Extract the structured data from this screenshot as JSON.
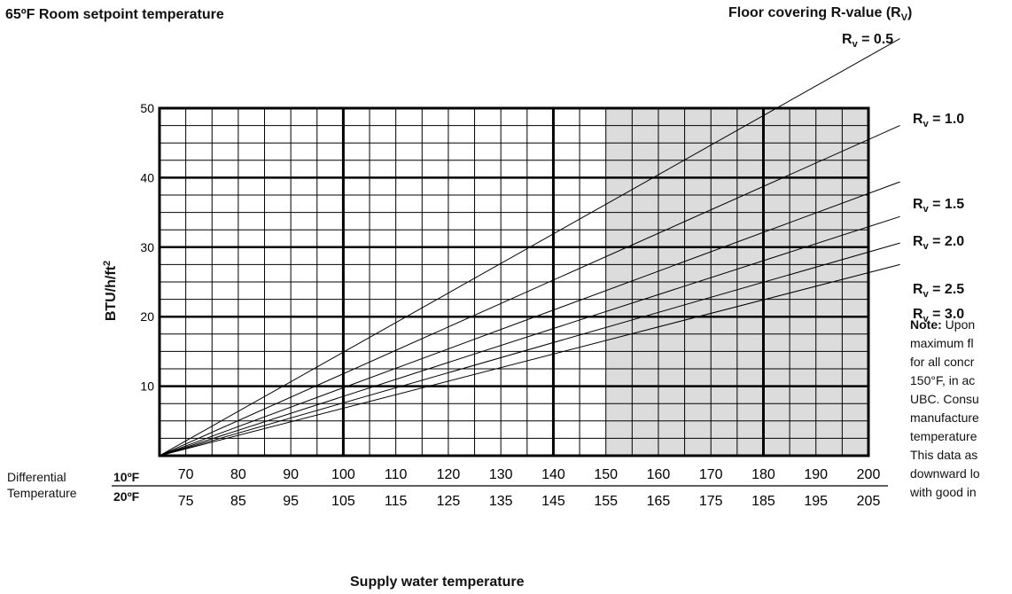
{
  "header": {
    "title": "65ºF Room setpoint temperature",
    "legend_title": "Floor covering R-value (R",
    "legend_title_sub": "V",
    "legend_title_close": ")"
  },
  "axes": {
    "ylabel": "BTU/h/ft",
    "ylabel_sup": "2",
    "xlabel": "Supply water temperature",
    "diff_label_line1": "Differential",
    "diff_label_line2": "Temperature",
    "diff_unit_10": "10ºF",
    "diff_unit_20": "20ºF"
  },
  "note": {
    "bold": "Note:",
    "lines": [
      " Upon",
      "maximum fl",
      "for all concr",
      "150°F, in ac",
      "UBC. Consu",
      "manufacture",
      "temperature",
      "This data as",
      "downward lo",
      "with good in"
    ]
  },
  "chart_data": {
    "type": "line",
    "title": "65ºF Room setpoint temperature",
    "xlabel": "Supply water temperature",
    "ylabel": "BTU/h/ft²",
    "xlim": [
      65,
      200
    ],
    "ylim": [
      0,
      50
    ],
    "x_ticks_10F": [
      70,
      80,
      90,
      100,
      110,
      120,
      130,
      140,
      150,
      160,
      170,
      180,
      190,
      200
    ],
    "x_ticks_20F": [
      75,
      85,
      95,
      105,
      115,
      125,
      135,
      145,
      155,
      165,
      175,
      185,
      195,
      205
    ],
    "y_ticks": [
      10,
      20,
      30,
      40,
      50
    ],
    "grid": true,
    "shaded_region": [
      150,
      200
    ],
    "shade_color": "#dcdcdc",
    "series": [
      {
        "name": "R = 0.5",
        "x": [
          65,
          206
        ],
        "y": [
          0,
          60.0
        ]
      },
      {
        "name": "R = 1.0",
        "x": [
          65,
          206
        ],
        "y": [
          0,
          47.5
        ]
      },
      {
        "name": "R = 1.5",
        "x": [
          65,
          206
        ],
        "y": [
          0,
          39.4
        ]
      },
      {
        "name": "R = 2.0",
        "x": [
          65,
          206
        ],
        "y": [
          0,
          34.4
        ]
      },
      {
        "name": "R = 2.5",
        "x": [
          65,
          206
        ],
        "y": [
          0,
          30.6
        ]
      },
      {
        "name": "R = 3.0",
        "x": [
          65,
          206
        ],
        "y": [
          0,
          27.5
        ]
      }
    ]
  }
}
